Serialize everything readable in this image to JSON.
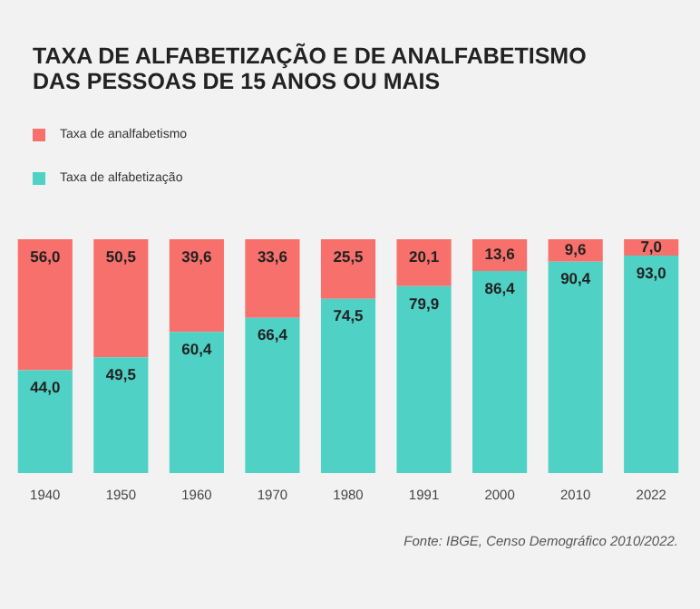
{
  "chart_data": {
    "type": "bar",
    "title": "TAXA DE ALFABETIZAÇÃO E DE ANALFABETISMO DAS PESSOAS DE 15 ANOS OU MAIS",
    "categories": [
      "1940",
      "1950",
      "1960",
      "1970",
      "1980",
      "1991",
      "2000",
      "2010",
      "2022"
    ],
    "series": [
      {
        "name": "Taxa de alfabetização",
        "color": "#4fd1c5",
        "values": [
          44.0,
          49.5,
          60.4,
          66.4,
          74.5,
          79.9,
          86.4,
          90.4,
          93.0
        ],
        "value_labels": [
          "44,0",
          "49,5",
          "60,4",
          "66,4",
          "74,5",
          "79,9",
          "86,4",
          "90,4",
          "93,0"
        ]
      },
      {
        "name": "Taxa de analfabetismo",
        "color": "#f7706b",
        "values": [
          56.0,
          50.5,
          39.6,
          33.6,
          25.5,
          20.1,
          13.6,
          9.6,
          7.0
        ],
        "value_labels": [
          "56,0",
          "50,5",
          "39,6",
          "33,6",
          "25,5",
          "20,1",
          "13,6",
          "9,6",
          "7,0"
        ]
      }
    ],
    "stacked": true,
    "tick_labels": "x",
    "grid": false,
    "legend": "top left",
    "annotations": [
      "Fonte: IBGE, Censo Demográfico 2010/2022."
    ]
  }
}
